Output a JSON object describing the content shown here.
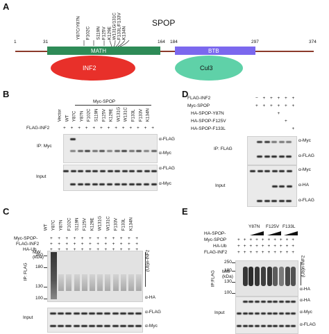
{
  "panelA": {
    "letter": "A",
    "protein": "SPOP",
    "mutations": [
      "Y87C/Y87N",
      "F102C",
      "S119N",
      "F125V",
      "K129E",
      "W131G/131C",
      "F133L/F133V",
      "K134N"
    ],
    "positions": [
      "1",
      "31",
      "164",
      "184",
      "297",
      "374"
    ],
    "domains": {
      "math": "MATH",
      "btb": "BTB"
    },
    "partners": {
      "inf2": "INF2",
      "cul3": "Cul3"
    },
    "colors": {
      "backbone": "#8b3a2a",
      "math": "#2e8b57",
      "btb": "#7b68ee",
      "inf2": "#e8302a",
      "cul3": "#5fd1a8"
    }
  },
  "panelB": {
    "letter": "B",
    "header": "Myc-SPOP",
    "lanes": [
      "Vector",
      "WT",
      "Y87C",
      "Y87N",
      "F102C",
      "S119N",
      "F125V",
      "K129E",
      "W131G",
      "W131C",
      "F133L",
      "F133V",
      "K134N"
    ],
    "row_label": "FLAG-INF2",
    "row_signs": [
      "+",
      "+",
      "+",
      "+",
      "+",
      "+",
      "+",
      "+",
      "+",
      "+",
      "+",
      "+",
      "+"
    ],
    "ip_label": "IP: Myc",
    "input_label": "Input",
    "antibodies": [
      "α-FLAG",
      "α-Myc",
      "α-FLAG",
      "α-Myc"
    ]
  },
  "panelC": {
    "letter": "C",
    "rows": [
      "Myc-SPOP-",
      "FLAG-INF2",
      "HA-Ub"
    ],
    "lanes": [
      "WT",
      "Y87C",
      "Y87N",
      "F102C",
      "S119N",
      "F125V",
      "K129E",
      "W131G",
      "W131C",
      "F133V",
      "F133L",
      "K134N"
    ],
    "row_signs": [
      "+",
      "+",
      "+",
      "+",
      "+",
      "+",
      "+",
      "+",
      "+",
      "+",
      "+",
      "+"
    ],
    "mw_label": "MW\n(kDa)",
    "mw_marks": [
      "250",
      "180",
      "130",
      "100"
    ],
    "ip_label": "IP: FLAG",
    "input_label": "Input",
    "ub_label": "(Ub)n-INF2",
    "antibodies": [
      "α-HA",
      "α-FLAG",
      "α-Myc"
    ]
  },
  "panelD": {
    "letter": "D",
    "rows": [
      {
        "label": "FLAG-INF2",
        "signs": [
          "−",
          "+",
          "+",
          "+",
          "+",
          "+"
        ]
      },
      {
        "label": "Myc-SPOP",
        "signs": [
          "+",
          "+",
          "+",
          "+",
          "+",
          "+"
        ]
      },
      {
        "label": "HA-SPOP-Y87N",
        "signs": [
          "",
          "",
          "",
          "+",
          "",
          ""
        ]
      },
      {
        "label": "HA-SPOP-F125V",
        "signs": [
          "",
          "",
          "",
          "",
          "+",
          ""
        ]
      },
      {
        "label": "HA-SPOP-F133L",
        "signs": [
          "",
          "",
          "",
          "",
          "",
          "+"
        ]
      }
    ],
    "ip_label": "IP: FLAG",
    "input_label": "Input",
    "antibodies": [
      "α-Myc",
      "α-FLAG",
      "α-Myc",
      "α-HA",
      "α-FLAG"
    ]
  },
  "panelE": {
    "letter": "E",
    "rows": [
      {
        "label": "HA-SPOP-",
        "signs": [
          "",
          "",
          "",
          "",
          "",
          "",
          "",
          "",
          "",
          ""
        ]
      },
      {
        "label": "Myc-SPOP",
        "signs": [
          "+",
          "+",
          "+",
          "+",
          "+",
          "+",
          "+",
          "+",
          "+",
          "+"
        ]
      },
      {
        "label": "HA-Ub",
        "signs": [
          "+",
          "+",
          "+",
          "+",
          "+",
          "+",
          "+",
          "+",
          "+",
          "+"
        ]
      },
      {
        "label": "FLAG-INF2",
        "signs": [
          "+",
          "+",
          "+",
          "+",
          "+",
          "+",
          "+",
          "+",
          "+",
          "+"
        ]
      }
    ],
    "groups": [
      "Y87N",
      "F125V",
      "F133L"
    ],
    "mw_label": "MW\n(kDa)",
    "mw_marks": [
      "250",
      "180",
      "130",
      "100"
    ],
    "ip_label": "IP:FLAG",
    "input_label": "Input",
    "ub_label": "(Ub)n-INF2",
    "antibodies": [
      "α-HA",
      "α-HA",
      "α-Myc",
      "α-FLAG"
    ]
  }
}
